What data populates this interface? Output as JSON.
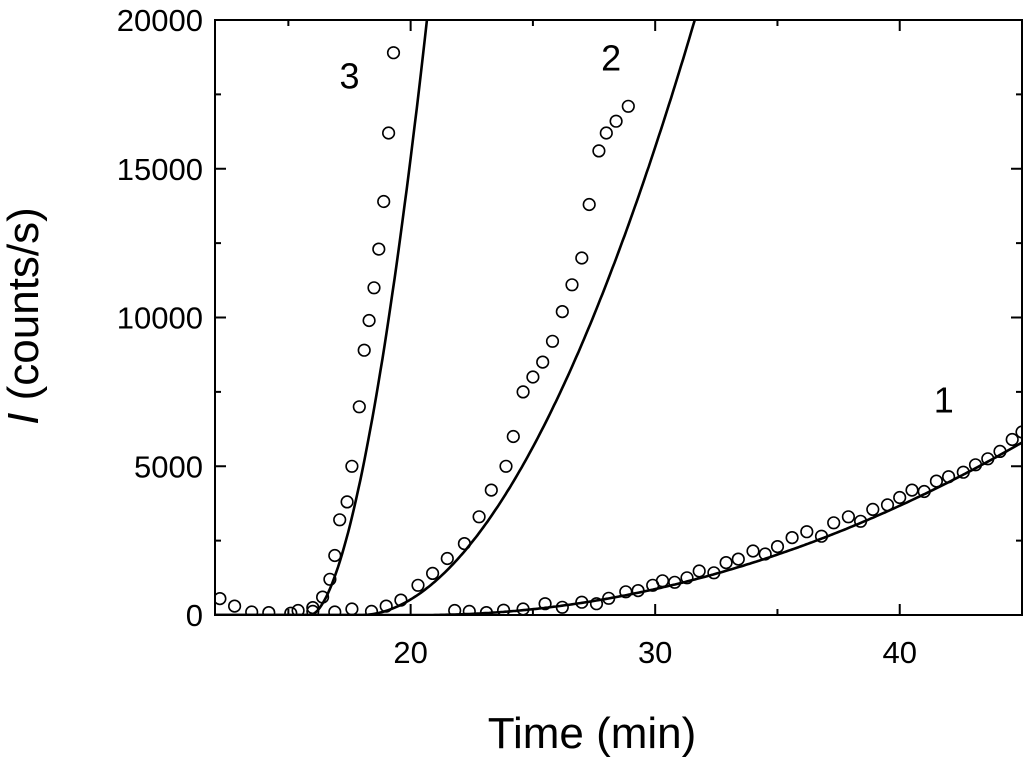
{
  "chart_data": {
    "type": "scatter",
    "title": "",
    "xlabel": "Time (min)",
    "ylabel_italic": "I",
    "ylabel_rest": " (counts/s)",
    "xlim": [
      12,
      45
    ],
    "ylim": [
      0,
      20000
    ],
    "xticks": [
      20,
      30,
      40
    ],
    "yticks": [
      0,
      5000,
      10000,
      15000,
      20000
    ],
    "grid": false,
    "legend": "none",
    "series": [
      {
        "label": "1",
        "label_at": [
          41.8,
          6800
        ],
        "fit": {
          "t0": 20.5,
          "a": 9.66,
          "p": 2
        },
        "points": [
          [
            21.8,
            150
          ],
          [
            22.4,
            120
          ],
          [
            23.1,
            80
          ],
          [
            23.8,
            160
          ],
          [
            24.6,
            200
          ],
          [
            25.5,
            380
          ],
          [
            26.2,
            260
          ],
          [
            27.0,
            430
          ],
          [
            27.6,
            380
          ],
          [
            28.1,
            560
          ],
          [
            28.8,
            780
          ],
          [
            29.3,
            820
          ],
          [
            29.9,
            1000
          ],
          [
            30.3,
            1150
          ],
          [
            30.8,
            1100
          ],
          [
            31.3,
            1250
          ],
          [
            31.8,
            1480
          ],
          [
            32.4,
            1420
          ],
          [
            32.9,
            1760
          ],
          [
            33.4,
            1880
          ],
          [
            34.0,
            2150
          ],
          [
            34.5,
            2050
          ],
          [
            35.0,
            2300
          ],
          [
            35.6,
            2600
          ],
          [
            36.2,
            2800
          ],
          [
            36.8,
            2650
          ],
          [
            37.3,
            3100
          ],
          [
            37.9,
            3300
          ],
          [
            38.4,
            3150
          ],
          [
            38.9,
            3550
          ],
          [
            39.5,
            3700
          ],
          [
            40.0,
            3950
          ],
          [
            40.5,
            4200
          ],
          [
            41.0,
            4150
          ],
          [
            41.5,
            4500
          ],
          [
            42.0,
            4650
          ],
          [
            42.6,
            4800
          ],
          [
            43.1,
            5050
          ],
          [
            43.6,
            5250
          ],
          [
            44.1,
            5500
          ],
          [
            44.6,
            5900
          ],
          [
            45.0,
            6150
          ]
        ]
      },
      {
        "label": "2",
        "label_at": [
          28.2,
          18300
        ],
        "fit": {
          "t0": 18.0,
          "a": 140.0,
          "p": 1.9
        },
        "points": [
          [
            12.2,
            550
          ],
          [
            12.8,
            300
          ],
          [
            13.5,
            100
          ],
          [
            14.2,
            80
          ],
          [
            15.1,
            60
          ],
          [
            16.0,
            120
          ],
          [
            16.9,
            100
          ],
          [
            17.6,
            200
          ],
          [
            18.4,
            120
          ],
          [
            19.0,
            300
          ],
          [
            19.6,
            500
          ],
          [
            20.3,
            1000
          ],
          [
            20.9,
            1400
          ],
          [
            21.5,
            1900
          ],
          [
            22.2,
            2400
          ],
          [
            22.8,
            3300
          ],
          [
            23.3,
            4200
          ],
          [
            23.9,
            5000
          ],
          [
            24.2,
            6000
          ],
          [
            24.6,
            7500
          ],
          [
            25.0,
            8000
          ],
          [
            25.4,
            8500
          ],
          [
            25.8,
            9200
          ],
          [
            26.2,
            10200
          ],
          [
            26.6,
            11100
          ],
          [
            27.0,
            12000
          ],
          [
            27.3,
            13800
          ],
          [
            27.7,
            15600
          ],
          [
            28.0,
            16200
          ],
          [
            28.4,
            16600
          ],
          [
            28.9,
            17100
          ]
        ]
      },
      {
        "label": "3",
        "label_at": [
          17.5,
          17700
        ],
        "fit": {
          "t0": 15.9,
          "a": 1300.0,
          "p": 1.75
        },
        "points": [
          [
            15.4,
            150
          ],
          [
            16.0,
            250
          ],
          [
            16.4,
            600
          ],
          [
            16.7,
            1200
          ],
          [
            16.9,
            2000
          ],
          [
            17.1,
            3200
          ],
          [
            17.4,
            3800
          ],
          [
            17.6,
            5000
          ],
          [
            17.9,
            7000
          ],
          [
            18.1,
            8900
          ],
          [
            18.3,
            9900
          ],
          [
            18.5,
            11000
          ],
          [
            18.7,
            12300
          ],
          [
            18.9,
            13900
          ],
          [
            19.1,
            16200
          ],
          [
            19.3,
            18900
          ]
        ]
      }
    ]
  }
}
